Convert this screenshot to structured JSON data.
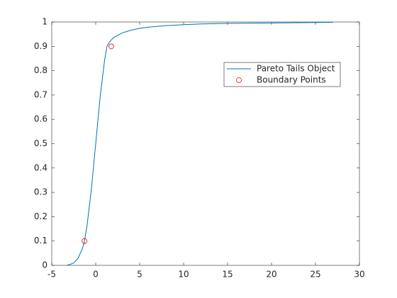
{
  "chart_data": {
    "type": "line",
    "xlim": [
      -5,
      30
    ],
    "ylim": [
      0,
      1
    ],
    "xticks": [
      -5,
      0,
      5,
      10,
      15,
      20,
      25,
      30
    ],
    "yticks": [
      0,
      0.1,
      0.2,
      0.3,
      0.4,
      0.5,
      0.6,
      0.7,
      0.8,
      0.9,
      1
    ],
    "legend": "northeast",
    "series": [
      {
        "name": "Pareto Tails Object",
        "color": "#0072bd",
        "type": "line",
        "x": [
          -3.3,
          -3,
          -2.5,
          -2,
          -1.5,
          -1.28,
          -1,
          -0.5,
          0,
          0.5,
          1,
          1.28,
          1.5,
          2,
          3,
          4,
          5,
          6,
          8,
          10,
          12,
          15,
          20,
          25,
          27
        ],
        "values": [
          0,
          0.003,
          0.01,
          0.03,
          0.07,
          0.1,
          0.16,
          0.31,
          0.5,
          0.69,
          0.84,
          0.9,
          0.915,
          0.935,
          0.955,
          0.966,
          0.974,
          0.979,
          0.985,
          0.989,
          0.992,
          0.994,
          0.996,
          0.998,
          0.999
        ]
      },
      {
        "name": "Boundary Points",
        "color": "#ff0000",
        "type": "scatter",
        "x": [
          -1.28,
          1.77
        ],
        "values": [
          0.1,
          0.9
        ]
      }
    ]
  }
}
